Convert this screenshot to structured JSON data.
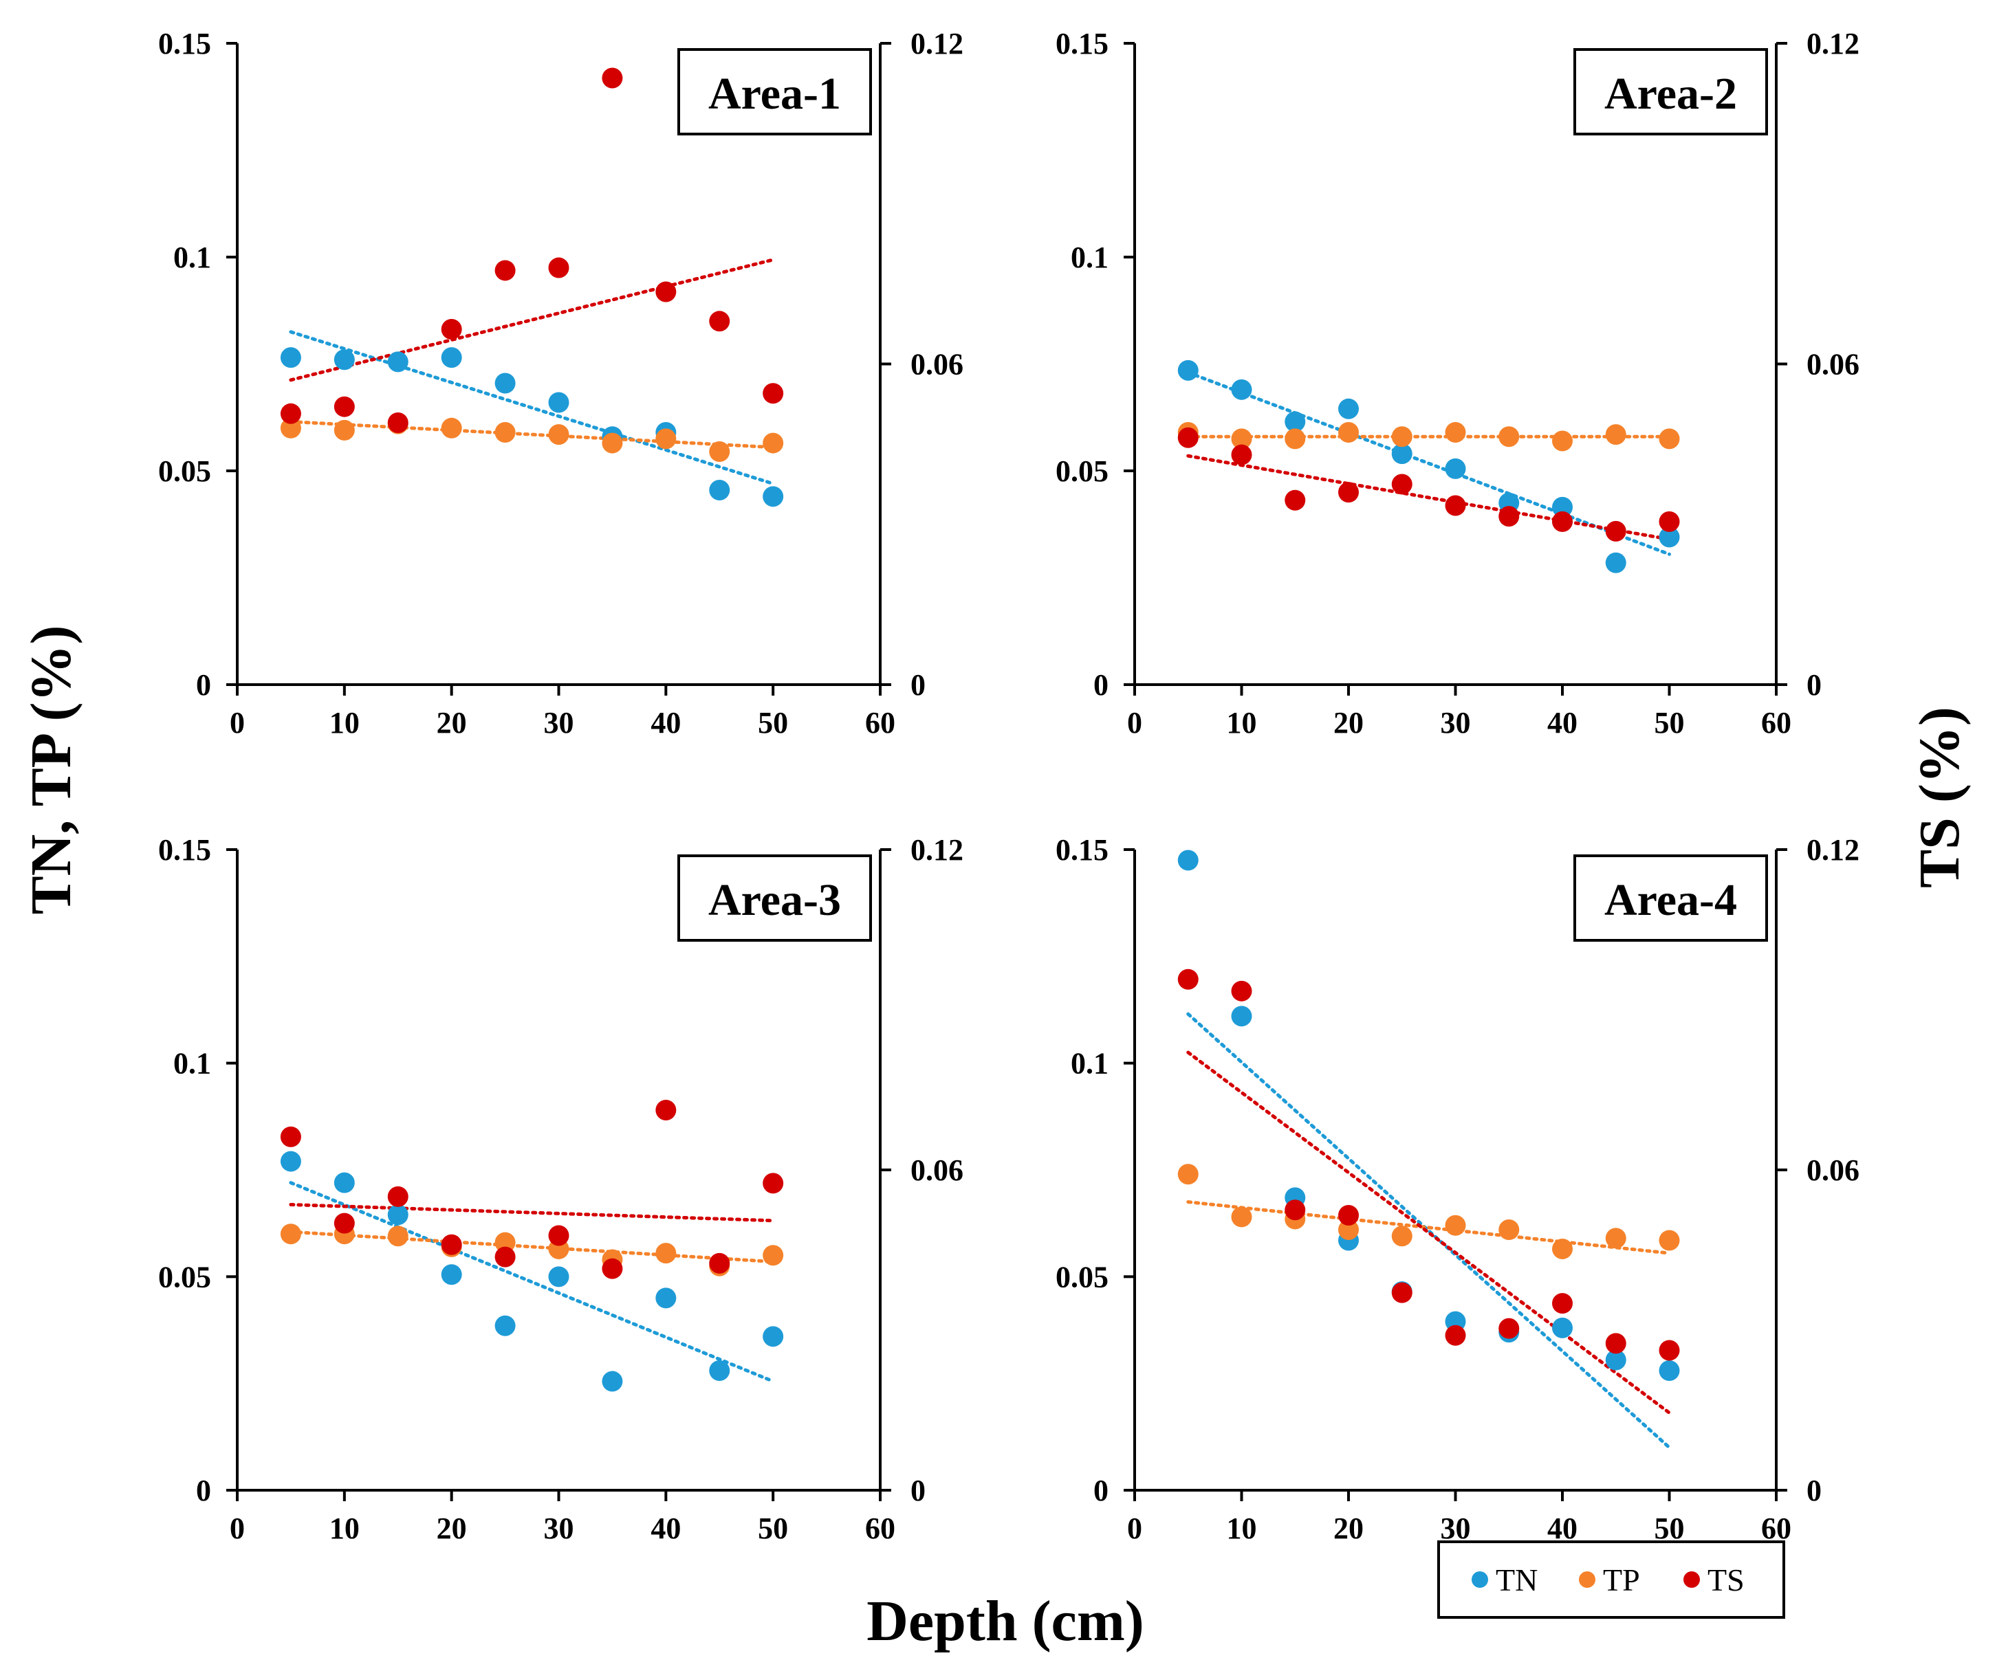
{
  "colors": {
    "TN": "#1e9bd7",
    "TP": "#f5822a",
    "TS": "#d40000"
  },
  "axis_titles": {
    "x": "Depth  (cm)",
    "y_left": "TN, TP  (%)",
    "y_right": "TS  (%)"
  },
  "legend": [
    "TN",
    "TP",
    "TS"
  ],
  "chart_data": [
    {
      "type": "scatter",
      "label": "Area-1",
      "xlim": [
        0,
        60
      ],
      "xticks": [
        "0",
        "10",
        "20",
        "30",
        "40",
        "50",
        "60"
      ],
      "ylim_left": [
        0,
        0.15
      ],
      "yticks_left": [
        "0",
        "0.05",
        "0.1",
        "0.15"
      ],
      "ylim_right": [
        0,
        0.12
      ],
      "yticks_right": [
        "0",
        "0.06",
        "0.12"
      ],
      "x": [
        5,
        10,
        15,
        20,
        25,
        30,
        35,
        40,
        45,
        50
      ],
      "series": [
        {
          "name": "TN",
          "axis": "left",
          "values": [
            0.0765,
            0.076,
            0.0755,
            0.0765,
            0.0705,
            0.066,
            0.058,
            0.059,
            0.0455,
            0.044
          ],
          "trend": [
            0.0825,
            0.047
          ]
        },
        {
          "name": "TP",
          "axis": "left",
          "values": [
            0.06,
            0.0595,
            0.061,
            0.06,
            0.059,
            0.0585,
            0.0565,
            0.0575,
            0.0545,
            0.0565
          ],
          "trend": [
            0.0615,
            0.0555
          ]
        },
        {
          "name": "TS",
          "axis": "right",
          "values": [
            0.0507,
            0.052,
            0.049,
            0.0665,
            0.0775,
            0.078,
            0.1135,
            0.0735,
            0.068,
            0.0545
          ],
          "trend": [
            0.057,
            0.0795
          ]
        }
      ]
    },
    {
      "type": "scatter",
      "label": "Area-2",
      "xlim": [
        0,
        60
      ],
      "xticks": [
        "0",
        "10",
        "20",
        "30",
        "40",
        "50",
        "60"
      ],
      "ylim_left": [
        0,
        0.15
      ],
      "yticks_left": [
        "0",
        "0.05",
        "0.1",
        "0.15"
      ],
      "ylim_right": [
        0,
        0.12
      ],
      "yticks_right": [
        "0",
        "0.06",
        "0.12"
      ],
      "x": [
        5,
        10,
        15,
        20,
        25,
        30,
        35,
        40,
        45,
        50
      ],
      "series": [
        {
          "name": "TN",
          "axis": "left",
          "values": [
            0.0735,
            0.069,
            0.0615,
            0.0645,
            0.054,
            0.0505,
            0.0425,
            0.0415,
            0.0285,
            0.0345
          ],
          "trend": [
            0.073,
            0.0305
          ]
        },
        {
          "name": "TP",
          "axis": "left",
          "values": [
            0.059,
            0.0575,
            0.0575,
            0.059,
            0.058,
            0.059,
            0.058,
            0.057,
            0.0585,
            0.0575
          ],
          "trend": [
            0.058,
            0.058
          ]
        },
        {
          "name": "TS",
          "axis": "right",
          "values": [
            0.0462,
            0.043,
            0.0345,
            0.036,
            0.0375,
            0.0335,
            0.0315,
            0.0305,
            0.0287,
            0.0305
          ],
          "trend": [
            0.0428,
            0.0272
          ]
        }
      ]
    },
    {
      "type": "scatter",
      "label": "Area-3",
      "xlim": [
        0,
        60
      ],
      "xticks": [
        "0",
        "10",
        "20",
        "30",
        "40",
        "50",
        "60"
      ],
      "ylim_left": [
        0,
        0.15
      ],
      "yticks_left": [
        "0",
        "0.05",
        "0.1",
        "0.15"
      ],
      "ylim_right": [
        0,
        0.12
      ],
      "yticks_right": [
        "0",
        "0.06",
        "0.12"
      ],
      "x": [
        5,
        10,
        15,
        20,
        25,
        30,
        35,
        40,
        45,
        50
      ],
      "series": [
        {
          "name": "TN",
          "axis": "left",
          "values": [
            0.077,
            0.072,
            0.0645,
            0.0505,
            0.0385,
            0.05,
            0.0255,
            0.045,
            0.028,
            0.036
          ],
          "trend": [
            0.072,
            0.0255
          ]
        },
        {
          "name": "TP",
          "axis": "left",
          "values": [
            0.06,
            0.06,
            0.0595,
            0.057,
            0.058,
            0.0565,
            0.054,
            0.0555,
            0.0525,
            0.055
          ],
          "trend": [
            0.0605,
            0.0535
          ]
        },
        {
          "name": "TS",
          "axis": "right",
          "values": [
            0.0662,
            0.05,
            0.055,
            0.046,
            0.0437,
            0.0477,
            0.0415,
            0.0712,
            0.0425,
            0.0575
          ],
          "trend": [
            0.0535,
            0.0505
          ]
        }
      ]
    },
    {
      "type": "scatter",
      "label": "Area-4",
      "xlim": [
        0,
        60
      ],
      "xticks": [
        "0",
        "10",
        "20",
        "30",
        "40",
        "50",
        "60"
      ],
      "ylim_left": [
        0,
        0.15
      ],
      "yticks_left": [
        "0",
        "0.05",
        "0.1",
        "0.15"
      ],
      "ylim_right": [
        0,
        0.12
      ],
      "yticks_right": [
        "0",
        "0.06",
        "0.12"
      ],
      "x": [
        5,
        10,
        15,
        20,
        25,
        30,
        35,
        40,
        45,
        50
      ],
      "series": [
        {
          "name": "TN",
          "axis": "left",
          "values": [
            0.1475,
            0.111,
            0.0685,
            0.0585,
            0.0465,
            0.0395,
            0.037,
            0.038,
            0.0305,
            0.028
          ],
          "trend": [
            0.1115,
            0.01
          ]
        },
        {
          "name": "TP",
          "axis": "left",
          "values": [
            0.074,
            0.064,
            0.0635,
            0.061,
            0.0595,
            0.062,
            0.061,
            0.0565,
            0.059,
            0.0585
          ],
          "trend": [
            0.0675,
            0.0555
          ]
        },
        {
          "name": "TS",
          "axis": "right",
          "values": [
            0.0957,
            0.0935,
            0.0525,
            0.0515,
            0.037,
            0.029,
            0.0303,
            0.035,
            0.0275,
            0.0262
          ],
          "trend": [
            0.082,
            0.0145
          ]
        }
      ]
    }
  ]
}
